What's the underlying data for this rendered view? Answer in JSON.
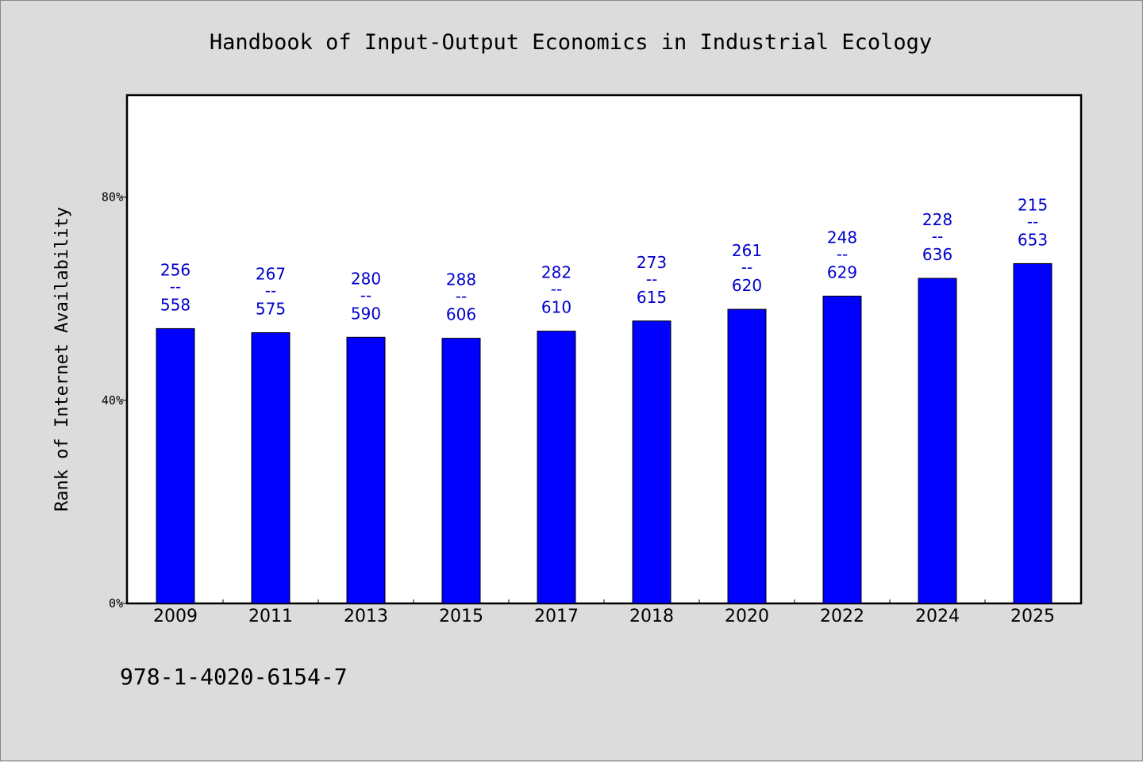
{
  "chart_data": {
    "type": "bar",
    "title": "Handbook of Input-Output Economics in Industrial Ecology",
    "xlabel": "",
    "ylabel": "Rank of Internet Availability",
    "ylim": [
      0,
      100
    ],
    "yticks": [
      {
        "value": 0,
        "label": "0%"
      },
      {
        "value": 40,
        "label": "40%"
      },
      {
        "value": 80,
        "label": "80%"
      }
    ],
    "categories": [
      "2009",
      "2011",
      "2013",
      "2015",
      "2017",
      "2018",
      "2020",
      "2022",
      "2024",
      "2025"
    ],
    "values": [
      54.1,
      53.3,
      52.4,
      52.2,
      53.6,
      55.6,
      57.9,
      60.5,
      64.0,
      66.9
    ],
    "data_labels": [
      {
        "top": "256",
        "mid": "--",
        "bottom": "558"
      },
      {
        "top": "267",
        "mid": "--",
        "bottom": "575"
      },
      {
        "top": "280",
        "mid": "--",
        "bottom": "590"
      },
      {
        "top": "288",
        "mid": "--",
        "bottom": "606"
      },
      {
        "top": "282",
        "mid": "--",
        "bottom": "610"
      },
      {
        "top": "273",
        "mid": "--",
        "bottom": "615"
      },
      {
        "top": "261",
        "mid": "--",
        "bottom": "620"
      },
      {
        "top": "248",
        "mid": "--",
        "bottom": "629"
      },
      {
        "top": "228",
        "mid": "--",
        "bottom": "636"
      },
      {
        "top": "215",
        "mid": "--",
        "bottom": "653"
      }
    ],
    "bar_color": "#0000ff",
    "label_color": "#0000cc",
    "grid": false,
    "legend": "none"
  },
  "footnote": "978-1-4020-6154-7"
}
